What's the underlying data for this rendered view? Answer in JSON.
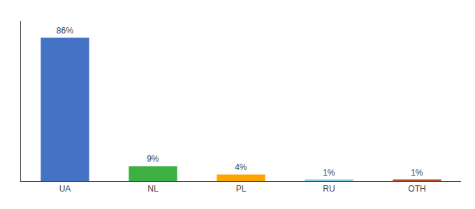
{
  "chart_data": {
    "type": "bar",
    "categories": [
      "UA",
      "NL",
      "PL",
      "RU",
      "OTH"
    ],
    "values": [
      86,
      9,
      4,
      1,
      1
    ],
    "value_labels": [
      "86%",
      "9%",
      "4%",
      "1%",
      "1%"
    ],
    "colors": [
      "#4472C4",
      "#3CB043",
      "#FFA500",
      "#87CEEB",
      "#B5522A"
    ],
    "ylim": [
      0,
      96
    ],
    "data_labels": true,
    "tick_labels": "x",
    "grid": false
  }
}
